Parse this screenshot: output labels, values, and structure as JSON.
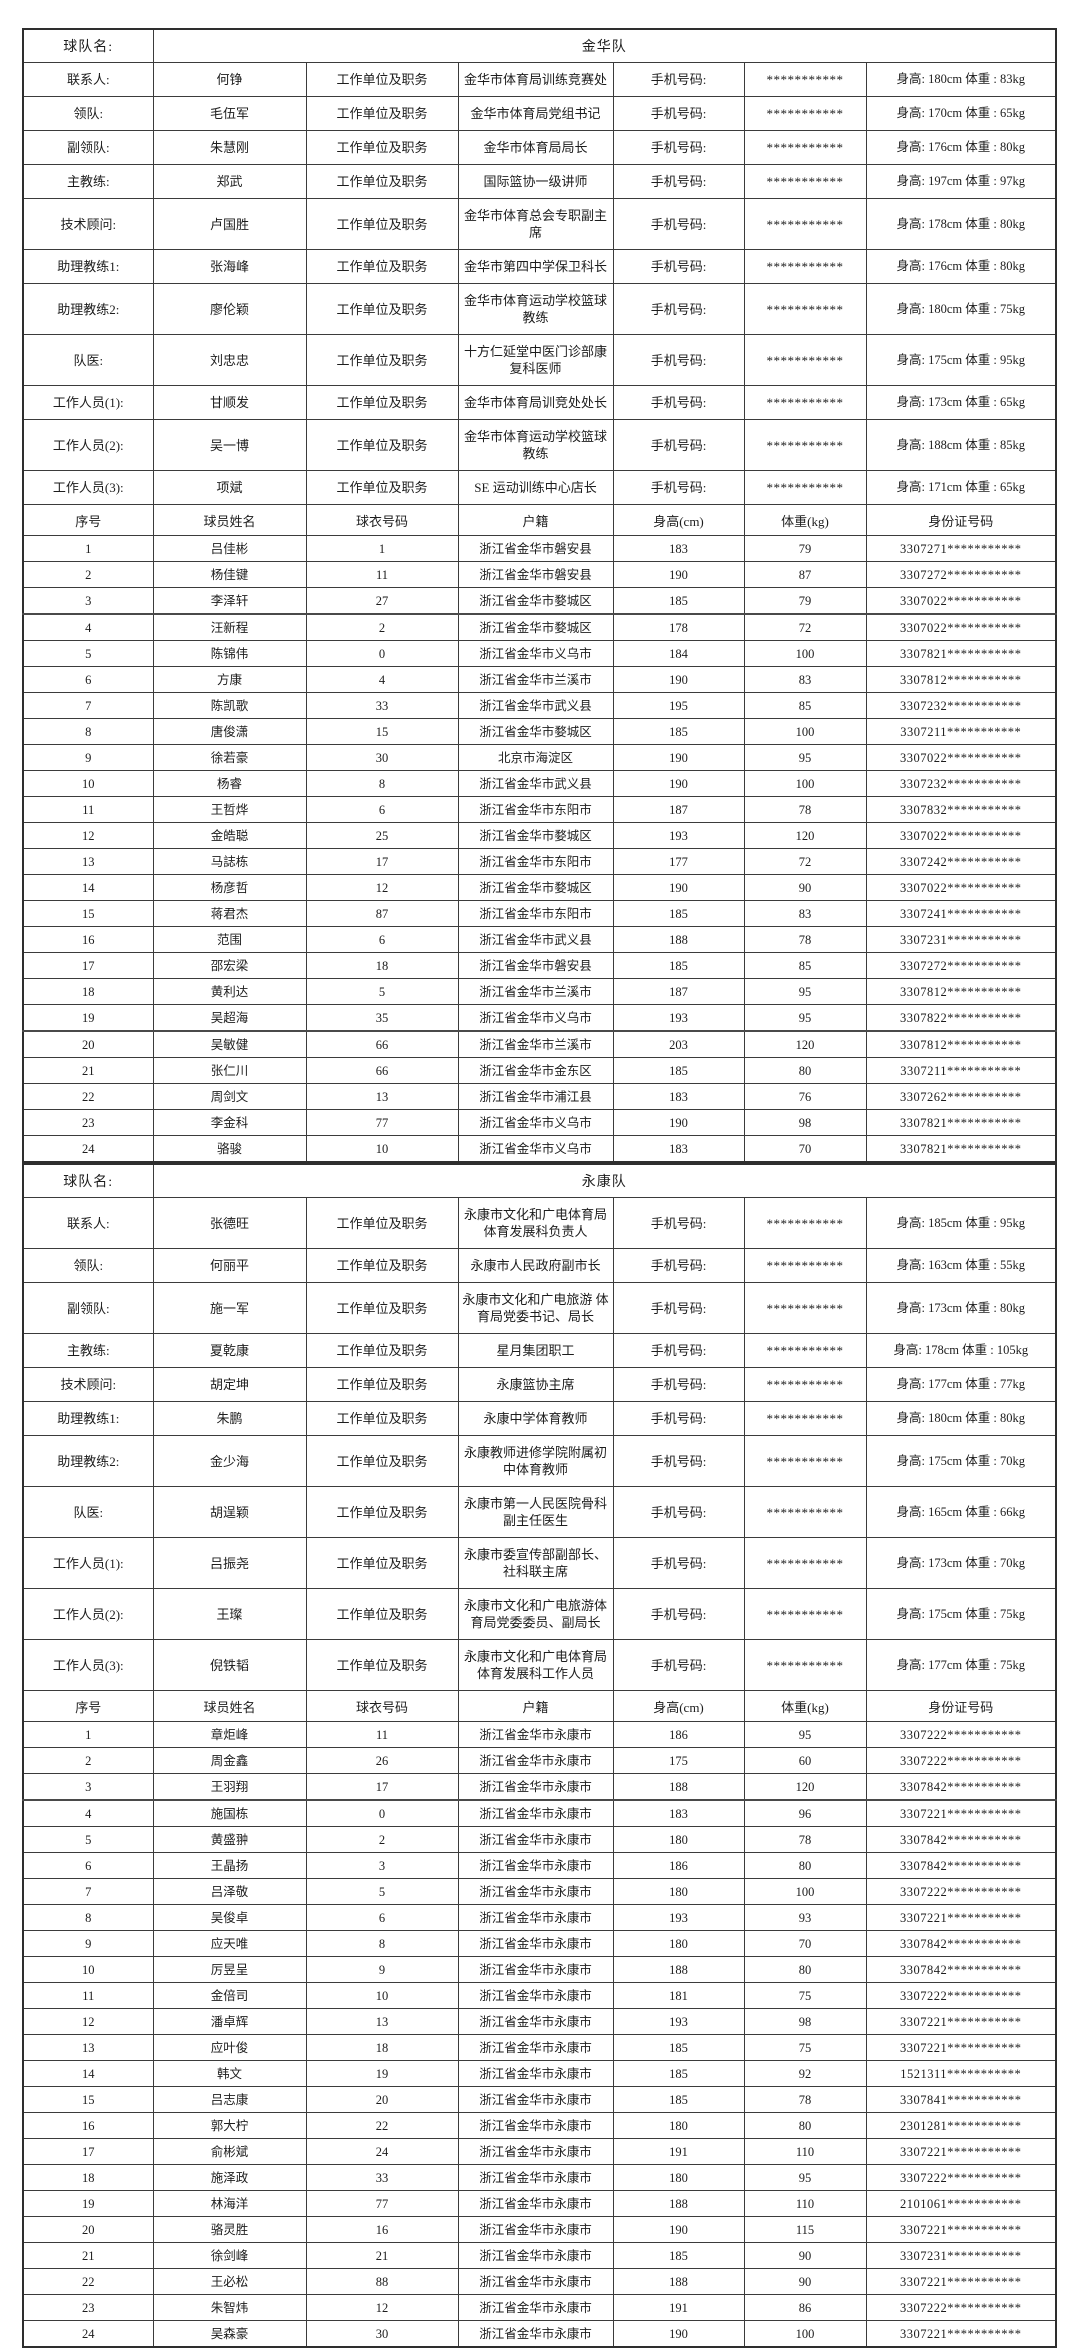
{
  "labels": {
    "team_name_label": "球队名:",
    "work_unit_label": "工作单位及职务",
    "phone_label": "手机号码:",
    "phone_mask": "***********",
    "player_headers": [
      "序号",
      "球员姓名",
      "球衣号码",
      "户籍",
      "身高(cm)",
      "体重(kg)",
      "身份证号码"
    ]
  },
  "teams": [
    {
      "name": "金华队",
      "staff": [
        {
          "role": "联系人:",
          "name": "何铮",
          "unit": "金华市体育局训练竞赛处",
          "phone_mask": "***********",
          "hw": "身高: 180cm 体重 : 83kg"
        },
        {
          "role": "领队:",
          "name": "毛伍军",
          "unit": "金华市体育局党组书记",
          "phone_mask": "***********",
          "hw": "身高: 170cm 体重 : 65kg"
        },
        {
          "role": "副领队:",
          "name": "朱慧刚",
          "unit": "金华市体育局局长",
          "phone_mask": "***********",
          "hw": "身高: 176cm 体重 : 80kg"
        },
        {
          "role": "主教练:",
          "name": "郑武",
          "unit": "国际篮协一级讲师",
          "phone_mask": "***********",
          "hw": "身高: 197cm 体重 : 97kg"
        },
        {
          "role": "技术顾问:",
          "name": "卢国胜",
          "unit": "金华市体育总会专职副主席",
          "phone_mask": "***********",
          "hw": "身高: 178cm 体重 : 80kg"
        },
        {
          "role": "助理教练1:",
          "name": "张海峰",
          "unit": "金华市第四中学保卫科长",
          "phone_mask": "***********",
          "hw": "身高: 176cm 体重 : 80kg"
        },
        {
          "role": "助理教练2:",
          "name": "廖伦颖",
          "unit": "金华市体育运动学校篮球教练",
          "phone_mask": "***********",
          "hw": "身高: 180cm 体重 : 75kg"
        },
        {
          "role": "队医:",
          "name": "刘忠忠",
          "unit": "十方仁延堂中医门诊部康复科医师",
          "phone_mask": "***********",
          "hw": "身高: 175cm 体重 : 95kg"
        },
        {
          "role": "工作人员(1):",
          "name": "甘顺发",
          "unit": "金华市体育局训竞处处长",
          "phone_mask": "***********",
          "hw": "身高: 173cm 体重 : 65kg"
        },
        {
          "role": "工作人员(2):",
          "name": "吴一博",
          "unit": "金华市体育运动学校篮球教练",
          "phone_mask": "***********",
          "hw": "身高: 188cm 体重 : 85kg"
        },
        {
          "role": "工作人员(3):",
          "name": "项斌",
          "unit": "SE 运动训练中心店长",
          "phone_mask": "***********",
          "hw": "身高: 171cm 体重 : 65kg"
        }
      ],
      "players": [
        {
          "no": "1",
          "name": "吕佳彬",
          "jersey": "1",
          "origin": "浙江省金华市磐安县",
          "height": "183",
          "weight": "79",
          "id_mask": "3307271***********"
        },
        {
          "no": "2",
          "name": "杨佳键",
          "jersey": "11",
          "origin": "浙江省金华市磐安县",
          "height": "190",
          "weight": "87",
          "id_mask": "3307272***********"
        },
        {
          "no": "3",
          "name": "李泽轩",
          "jersey": "27",
          "origin": "浙江省金华市婺城区",
          "height": "185",
          "weight": "79",
          "id_mask": "3307022***********"
        },
        {
          "no": "4",
          "name": "汪新程",
          "jersey": "2",
          "origin": "浙江省金华市婺城区",
          "height": "178",
          "weight": "72",
          "id_mask": "3307022***********"
        },
        {
          "no": "5",
          "name": "陈锦伟",
          "jersey": "0",
          "origin": "浙江省金华市义乌市",
          "height": "184",
          "weight": "100",
          "id_mask": "3307821***********"
        },
        {
          "no": "6",
          "name": "方康",
          "jersey": "4",
          "origin": "浙江省金华市兰溪市",
          "height": "190",
          "weight": "83",
          "id_mask": "3307812***********"
        },
        {
          "no": "7",
          "name": "陈凯歌",
          "jersey": "33",
          "origin": "浙江省金华市武义县",
          "height": "195",
          "weight": "85",
          "id_mask": "3307232***********"
        },
        {
          "no": "8",
          "name": "唐俊潇",
          "jersey": "15",
          "origin": "浙江省金华市婺城区",
          "height": "185",
          "weight": "100",
          "id_mask": "3307211***********"
        },
        {
          "no": "9",
          "name": "徐若豪",
          "jersey": "30",
          "origin": "北京市海淀区",
          "height": "190",
          "weight": "95",
          "id_mask": "3307022***********"
        },
        {
          "no": "10",
          "name": "杨睿",
          "jersey": "8",
          "origin": "浙江省金华市武义县",
          "height": "190",
          "weight": "100",
          "id_mask": "3307232***********"
        },
        {
          "no": "11",
          "name": "王哲烨",
          "jersey": "6",
          "origin": "浙江省金华市东阳市",
          "height": "187",
          "weight": "78",
          "id_mask": "3307832***********"
        },
        {
          "no": "12",
          "name": "金皓聪",
          "jersey": "25",
          "origin": "浙江省金华市婺城区",
          "height": "193",
          "weight": "120",
          "id_mask": "3307022***********"
        },
        {
          "no": "13",
          "name": "马誌栋",
          "jersey": "17",
          "origin": "浙江省金华市东阳市",
          "height": "177",
          "weight": "72",
          "id_mask": "3307242***********"
        },
        {
          "no": "14",
          "name": "杨彦哲",
          "jersey": "12",
          "origin": "浙江省金华市婺城区",
          "height": "190",
          "weight": "90",
          "id_mask": "3307022***********"
        },
        {
          "no": "15",
          "name": "蒋君杰",
          "jersey": "87",
          "origin": "浙江省金华市东阳市",
          "height": "185",
          "weight": "83",
          "id_mask": "3307241***********"
        },
        {
          "no": "16",
          "name": "范围",
          "jersey": "6",
          "origin": "浙江省金华市武义县",
          "height": "188",
          "weight": "78",
          "id_mask": "3307231***********"
        },
        {
          "no": "17",
          "name": "邵宏梁",
          "jersey": "18",
          "origin": "浙江省金华市磐安县",
          "height": "185",
          "weight": "85",
          "id_mask": "3307272***********"
        },
        {
          "no": "18",
          "name": "黄利达",
          "jersey": "5",
          "origin": "浙江省金华市兰溪市",
          "height": "187",
          "weight": "95",
          "id_mask": "3307812***********"
        },
        {
          "no": "19",
          "name": "吴超海",
          "jersey": "35",
          "origin": "浙江省金华市义乌市",
          "height": "193",
          "weight": "95",
          "id_mask": "3307822***********"
        },
        {
          "no": "20",
          "name": "吴敏健",
          "jersey": "66",
          "origin": "浙江省金华市兰溪市",
          "height": "203",
          "weight": "120",
          "id_mask": "3307812***********"
        },
        {
          "no": "21",
          "name": "张仁川",
          "jersey": "66",
          "origin": "浙江省金华市金东区",
          "height": "185",
          "weight": "80",
          "id_mask": "3307211***********"
        },
        {
          "no": "22",
          "name": "周剑文",
          "jersey": "13",
          "origin": "浙江省金华市浦江县",
          "height": "183",
          "weight": "76",
          "id_mask": "3307262***********"
        },
        {
          "no": "23",
          "name": "李金科",
          "jersey": "77",
          "origin": "浙江省金华市义乌市",
          "height": "190",
          "weight": "98",
          "id_mask": "3307821***********"
        },
        {
          "no": "24",
          "name": "骆骏",
          "jersey": "10",
          "origin": "浙江省金华市义乌市",
          "height": "183",
          "weight": "70",
          "id_mask": "3307821***********"
        }
      ]
    },
    {
      "name": "永康队",
      "staff": [
        {
          "role": "联系人:",
          "name": "张德旺",
          "unit": "永康市文化和广电体育局体育发展科负责人",
          "phone_mask": "***********",
          "hw": "身高: 185cm 体重 : 95kg"
        },
        {
          "role": "领队:",
          "name": "何丽平",
          "unit": "永康市人民政府副市长",
          "phone_mask": "***********",
          "hw": "身高: 163cm 体重 : 55kg"
        },
        {
          "role": "副领队:",
          "name": "施一军",
          "unit": "永康市文化和广电旅游 体育局党委书记、局长",
          "phone_mask": "***********",
          "hw": "身高: 173cm 体重 : 80kg"
        },
        {
          "role": "主教练:",
          "name": "夏乾康",
          "unit": "星月集团职工",
          "phone_mask": "***********",
          "hw": "身高: 178cm 体重 : 105kg"
        },
        {
          "role": "技术顾问:",
          "name": "胡定坤",
          "unit": "永康篮协主席",
          "phone_mask": "***********",
          "hw": "身高: 177cm 体重 : 77kg"
        },
        {
          "role": "助理教练1:",
          "name": "朱鹏",
          "unit": "永康中学体育教师",
          "phone_mask": "***********",
          "hw": "身高: 180cm 体重 : 80kg"
        },
        {
          "role": "助理教练2:",
          "name": "金少海",
          "unit": "永康教师进修学院附属初中体育教师",
          "phone_mask": "***********",
          "hw": "身高: 175cm 体重 : 70kg"
        },
        {
          "role": "队医:",
          "name": "胡逞颖",
          "unit": "永康市第一人民医院骨科副主任医生",
          "phone_mask": "***********",
          "hw": "身高: 165cm 体重 : 66kg"
        },
        {
          "role": "工作人员(1):",
          "name": "吕振尧",
          "unit": "永康市委宣传部副部长、社科联主席",
          "phone_mask": "***********",
          "hw": "身高: 173cm 体重 : 70kg"
        },
        {
          "role": "工作人员(2):",
          "name": "王璨",
          "unit": "永康市文化和广电旅游体育局党委委员、副局长",
          "phone_mask": "***********",
          "hw": "身高: 175cm 体重 : 75kg"
        },
        {
          "role": "工作人员(3):",
          "name": "倪铁韬",
          "unit": "永康市文化和广电体育局体育发展科工作人员",
          "phone_mask": "***********",
          "hw": "身高: 177cm 体重 : 75kg"
        }
      ],
      "players": [
        {
          "no": "1",
          "name": "章炬峰",
          "jersey": "11",
          "origin": "浙江省金华市永康市",
          "height": "186",
          "weight": "95",
          "id_mask": "3307222***********"
        },
        {
          "no": "2",
          "name": "周金鑫",
          "jersey": "26",
          "origin": "浙江省金华市永康市",
          "height": "175",
          "weight": "60",
          "id_mask": "3307222***********"
        },
        {
          "no": "3",
          "name": "王羽翔",
          "jersey": "17",
          "origin": "浙江省金华市永康市",
          "height": "188",
          "weight": "120",
          "id_mask": "3307842***********"
        },
        {
          "no": "4",
          "name": "施国栋",
          "jersey": "0",
          "origin": "浙江省金华市永康市",
          "height": "183",
          "weight": "96",
          "id_mask": "3307221***********"
        },
        {
          "no": "5",
          "name": "黄盛翀",
          "jersey": "2",
          "origin": "浙江省金华市永康市",
          "height": "180",
          "weight": "78",
          "id_mask": "3307842***********"
        },
        {
          "no": "6",
          "name": "王晶扬",
          "jersey": "3",
          "origin": "浙江省金华市永康市",
          "height": "186",
          "weight": "80",
          "id_mask": "3307842***********"
        },
        {
          "no": "7",
          "name": "吕泽敬",
          "jersey": "5",
          "origin": "浙江省金华市永康市",
          "height": "180",
          "weight": "100",
          "id_mask": "3307222***********"
        },
        {
          "no": "8",
          "name": "吴俊卓",
          "jersey": "6",
          "origin": "浙江省金华市永康市",
          "height": "193",
          "weight": "93",
          "id_mask": "3307221***********"
        },
        {
          "no": "9",
          "name": "应天唯",
          "jersey": "8",
          "origin": "浙江省金华市永康市",
          "height": "180",
          "weight": "70",
          "id_mask": "3307842***********"
        },
        {
          "no": "10",
          "name": "厉昱呈",
          "jersey": "9",
          "origin": "浙江省金华市永康市",
          "height": "188",
          "weight": "80",
          "id_mask": "3307842***********"
        },
        {
          "no": "11",
          "name": "金倍司",
          "jersey": "10",
          "origin": "浙江省金华市永康市",
          "height": "181",
          "weight": "75",
          "id_mask": "3307222***********"
        },
        {
          "no": "12",
          "name": "潘卓辉",
          "jersey": "13",
          "origin": "浙江省金华市永康市",
          "height": "193",
          "weight": "98",
          "id_mask": "3307221***********"
        },
        {
          "no": "13",
          "name": "应叶俊",
          "jersey": "18",
          "origin": "浙江省金华市永康市",
          "height": "185",
          "weight": "75",
          "id_mask": "3307221***********"
        },
        {
          "no": "14",
          "name": "韩文",
          "jersey": "19",
          "origin": "浙江省金华市永康市",
          "height": "185",
          "weight": "92",
          "id_mask": "1521311***********"
        },
        {
          "no": "15",
          "name": "吕志康",
          "jersey": "20",
          "origin": "浙江省金华市永康市",
          "height": "185",
          "weight": "78",
          "id_mask": "3307841***********"
        },
        {
          "no": "16",
          "name": "郭大柠",
          "jersey": "22",
          "origin": "浙江省金华市永康市",
          "height": "180",
          "weight": "80",
          "id_mask": "2301281***********"
        },
        {
          "no": "17",
          "name": "俞彬斌",
          "jersey": "24",
          "origin": "浙江省金华市永康市",
          "height": "191",
          "weight": "110",
          "id_mask": "3307221***********"
        },
        {
          "no": "18",
          "name": "施泽政",
          "jersey": "33",
          "origin": "浙江省金华市永康市",
          "height": "180",
          "weight": "95",
          "id_mask": "3307222***********"
        },
        {
          "no": "19",
          "name": "林海洋",
          "jersey": "77",
          "origin": "浙江省金华市永康市",
          "height": "188",
          "weight": "110",
          "id_mask": "2101061***********"
        },
        {
          "no": "20",
          "name": "骆灵胜",
          "jersey": "16",
          "origin": "浙江省金华市永康市",
          "height": "190",
          "weight": "115",
          "id_mask": "3307221***********"
        },
        {
          "no": "21",
          "name": "徐剑峰",
          "jersey": "21",
          "origin": "浙江省金华市永康市",
          "height": "185",
          "weight": "90",
          "id_mask": "3307231***********"
        },
        {
          "no": "22",
          "name": "王必松",
          "jersey": "88",
          "origin": "浙江省金华市永康市",
          "height": "188",
          "weight": "90",
          "id_mask": "3307221***********"
        },
        {
          "no": "23",
          "name": "朱智炜",
          "jersey": "12",
          "origin": "浙江省金华市永康市",
          "height": "191",
          "weight": "86",
          "id_mask": "3307222***********"
        },
        {
          "no": "24",
          "name": "吴森豪",
          "jersey": "30",
          "origin": "浙江省金华市永康市",
          "height": "190",
          "weight": "100",
          "id_mask": "3307221***********"
        }
      ]
    }
  ]
}
